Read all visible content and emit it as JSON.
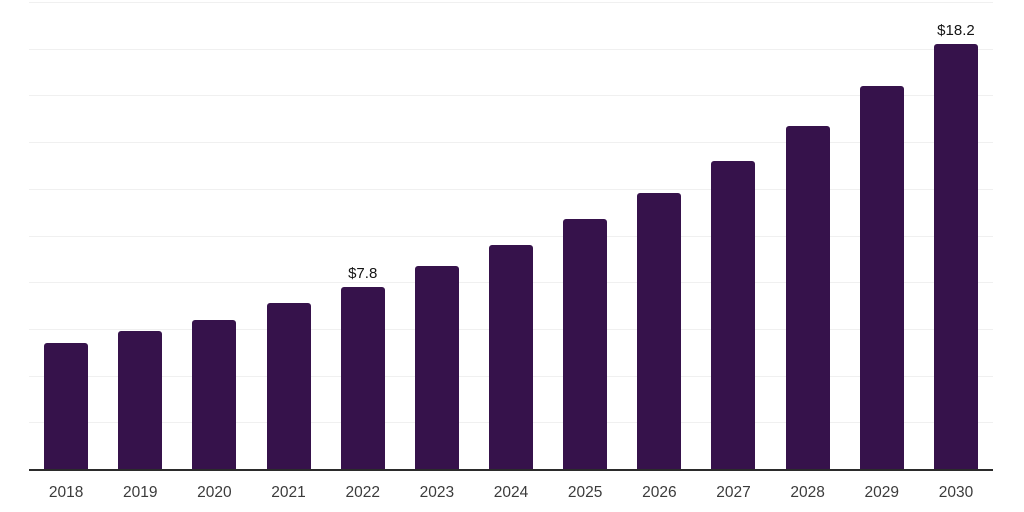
{
  "chart_data": {
    "type": "bar",
    "title": "",
    "xlabel": "",
    "ylabel": "",
    "categories": [
      "2018",
      "2019",
      "2020",
      "2021",
      "2022",
      "2023",
      "2024",
      "2025",
      "2026",
      "2027",
      "2028",
      "2029",
      "2030"
    ],
    "values": [
      5.4,
      5.9,
      6.4,
      7.1,
      7.8,
      8.7,
      9.6,
      10.7,
      11.8,
      13.2,
      14.7,
      16.4,
      18.2
    ],
    "data_labels": [
      "",
      "",
      "",
      "",
      "$7.8",
      "",
      "",
      "",
      "",
      "",
      "",
      "",
      "$18.2"
    ],
    "ylim": [
      0,
      20
    ],
    "y_gridline_step": 2,
    "grid": "horizontal",
    "legend_position": "none",
    "colors": {
      "bar": "#36124b",
      "gridline": "#f0f0f0",
      "axis_line": "#2b2b2b",
      "x_label": "#3b3b3b",
      "value_label": "#141414",
      "background": "#ffffff"
    }
  }
}
